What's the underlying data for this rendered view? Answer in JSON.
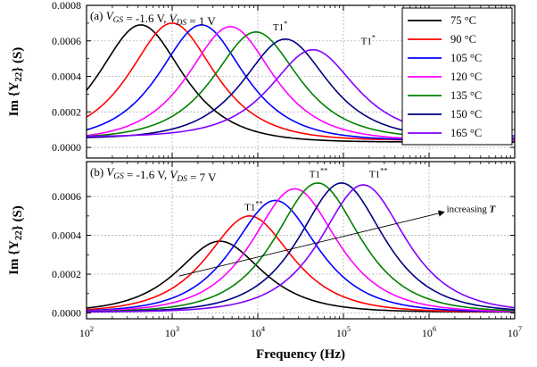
{
  "chart_data": {
    "type": "line",
    "x_scale": "log",
    "xlim": [
      100,
      10000000
    ],
    "xlabel": "Frequency (Hz)",
    "x_ticks": [
      "10^2",
      "10^3",
      "10^4",
      "10^5",
      "10^6",
      "10^7"
    ],
    "grid": true,
    "legend": {
      "placement": "top-right (upper panel)",
      "entries": [
        {
          "label": "75 °C",
          "color": "#000000"
        },
        {
          "label": "90 °C",
          "color": "#ff0000"
        },
        {
          "label": "105 °C",
          "color": "#0000ff"
        },
        {
          "label": "120 °C",
          "color": "#ff00ff"
        },
        {
          "label": "135 °C",
          "color": "#008000"
        },
        {
          "label": "150 °C",
          "color": "#000080"
        },
        {
          "label": "165 °C",
          "color": "#8000ff"
        }
      ]
    },
    "panels": [
      {
        "label": "(a) V_GS = -1.6 V, V_DS = 1 V",
        "ylabel": "Im {Y22} (S)",
        "ylim": [
          -6e-05,
          0.0008
        ],
        "y_ticks": [
          "0.0000",
          "0.0002",
          "0.0004",
          "0.0006",
          "0.0008"
        ],
        "annotations": [
          {
            "text": "T1*",
            "x": 15000,
            "y": 0.00066
          },
          {
            "text": "T1*",
            "x": 160000,
            "y": 0.00058
          }
        ],
        "series": [
          {
            "name": "75 °C",
            "peak_f": 430,
            "peak": 0.00069,
            "floor": 3e-05
          },
          {
            "name": "90 °C",
            "peak_f": 1000,
            "peak": 0.0007,
            "floor": 4e-05
          },
          {
            "name": "105 °C",
            "peak_f": 2200,
            "peak": 0.00069,
            "floor": 4e-05
          },
          {
            "name": "120 °C",
            "peak_f": 4800,
            "peak": 0.00068,
            "floor": 4e-05
          },
          {
            "name": "135 °C",
            "peak_f": 9500,
            "peak": 0.00065,
            "floor": 5e-05
          },
          {
            "name": "150 °C",
            "peak_f": 21000,
            "peak": 0.00061,
            "floor": 5e-05
          },
          {
            "name": "165 °C",
            "peak_f": 44000,
            "peak": 0.00055,
            "floor": 6e-05
          }
        ]
      },
      {
        "label": "(b) V_GS = -1.6 V, V_DS = 7 V",
        "ylabel": "Im {Y22} (S)",
        "ylim": [
          -3e-05,
          0.00078
        ],
        "y_ticks": [
          "0.0000",
          "0.0002",
          "0.0004",
          "0.0006"
        ],
        "annotations": [
          {
            "text": "T1**",
            "x": 7000,
            "y": 0.00053
          },
          {
            "text": "T1**",
            "x": 40000,
            "y": 0.0007
          },
          {
            "text": "T1**",
            "x": 200000,
            "y": 0.0007
          },
          {
            "text": "increasing T",
            "x": 1600000,
            "y": 0.00052
          }
        ],
        "series": [
          {
            "name": "75 °C",
            "peak_f": 3600,
            "peak": 0.00037,
            "floor": 5e-06
          },
          {
            "name": "90 °C",
            "peak_f": 8000,
            "peak": 0.0005,
            "floor": 5e-06
          },
          {
            "name": "105 °C",
            "peak_f": 16000,
            "peak": 0.00058,
            "floor": 5e-06
          },
          {
            "name": "120 °C",
            "peak_f": 27000,
            "peak": 0.00064,
            "floor": 5e-06
          },
          {
            "name": "135 °C",
            "peak_f": 50000,
            "peak": 0.00067,
            "floor": 5e-06
          },
          {
            "name": "150 °C",
            "peak_f": 95000,
            "peak": 0.00067,
            "floor": 5e-06
          },
          {
            "name": "165 °C",
            "peak_f": 170000,
            "peak": 0.00066,
            "floor": 5e-06
          }
        ]
      }
    ]
  }
}
